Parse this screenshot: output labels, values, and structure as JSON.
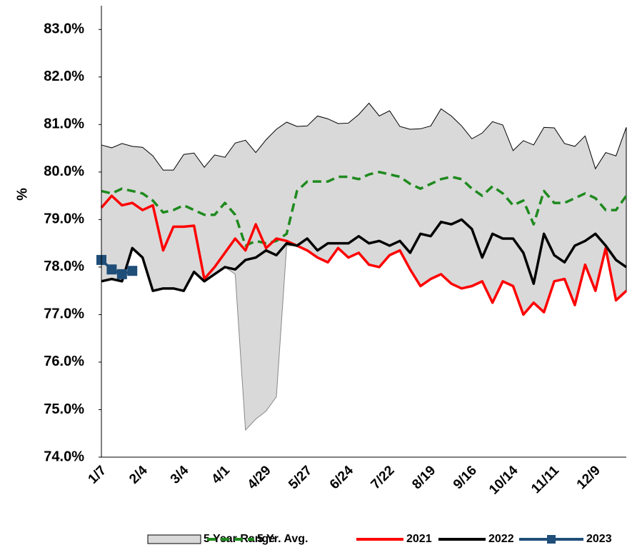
{
  "chart_data": {
    "type": "line",
    "y_label": "%",
    "categories": [
      "1/7",
      null,
      null,
      null,
      "2/4",
      null,
      null,
      null,
      "3/4",
      null,
      null,
      null,
      "4/1",
      null,
      null,
      null,
      "4/29",
      null,
      null,
      null,
      "5/27",
      null,
      null,
      null,
      "6/24",
      null,
      null,
      null,
      "7/22",
      null,
      null,
      null,
      "8/19",
      null,
      null,
      null,
      "9/16",
      null,
      null,
      null,
      "10/14",
      null,
      null,
      null,
      "11/11",
      null,
      null,
      null,
      "12/9",
      null,
      null,
      null
    ],
    "ylim": [
      74,
      83.5
    ],
    "yticks": [
      {
        "value": 74,
        "label": "74.0%"
      },
      {
        "value": 75,
        "label": "75.0%"
      },
      {
        "value": 76,
        "label": "76.0%"
      },
      {
        "value": 77,
        "label": "77.0%"
      },
      {
        "value": 78,
        "label": "78.0%"
      },
      {
        "value": 79,
        "label": "79.0%"
      },
      {
        "value": 80,
        "label": "80.0%"
      },
      {
        "value": 81,
        "label": "81.0%"
      },
      {
        "value": 82,
        "label": "82.0%"
      },
      {
        "value": 83,
        "label": "83.0%"
      }
    ],
    "grid": false,
    "series": [
      {
        "name": "5 Year Range",
        "color": "#d9d9d9",
        "kind": "range",
        "high": [
          80.57,
          80.51,
          80.6,
          80.54,
          80.52,
          80.34,
          80.04,
          80.04,
          80.37,
          80.4,
          80.1,
          80.36,
          80.31,
          80.61,
          80.67,
          80.41,
          80.68,
          80.9,
          81.05,
          80.96,
          80.97,
          81.18,
          81.12,
          81.02,
          81.03,
          81.21,
          81.45,
          81.18,
          81.29,
          80.96,
          80.9,
          80.91,
          80.97,
          81.33,
          81.18,
          80.97,
          80.7,
          80.82,
          81.06,
          80.99,
          80.45,
          80.66,
          80.57,
          80.94,
          80.93,
          80.6,
          80.54,
          80.76,
          80.07,
          80.41,
          80.34,
          80.94
        ],
        "low": [
          77.7,
          77.75,
          77.7,
          78.4,
          78.2,
          77.5,
          77.55,
          77.55,
          77.5,
          77.9,
          77.7,
          77.85,
          78.0,
          77.85,
          74.57,
          74.8,
          74.97,
          75.27,
          78.45,
          78.45,
          78.35,
          78.2,
          78.1,
          78.4,
          78.2,
          78.3,
          78.05,
          78.0,
          78.25,
          78.35,
          77.95,
          77.6,
          77.75,
          77.85,
          77.65,
          77.55,
          77.6,
          77.7,
          77.25,
          77.7,
          77.6,
          77.0,
          77.25,
          77.05,
          77.7,
          77.75,
          77.2,
          78.05,
          77.5,
          78.4,
          77.3,
          77.5
        ]
      },
      {
        "name": "5 Yr. Avg.",
        "color": "#1e8a1e",
        "dashed": true,
        "values": [
          79.6,
          79.55,
          79.65,
          79.6,
          79.55,
          79.4,
          79.15,
          79.2,
          79.3,
          79.2,
          79.1,
          79.1,
          79.35,
          79.1,
          78.45,
          78.55,
          78.5,
          78.55,
          78.7,
          79.6,
          79.8,
          79.8,
          79.8,
          79.9,
          79.9,
          79.85,
          79.95,
          80.0,
          79.95,
          79.9,
          79.75,
          79.65,
          79.75,
          79.85,
          79.9,
          79.85,
          79.65,
          79.5,
          79.7,
          79.55,
          79.3,
          79.4,
          78.9,
          79.6,
          79.35,
          79.35,
          79.45,
          79.55,
          79.45,
          79.2,
          79.2,
          79.5
        ]
      },
      {
        "name": "2021",
        "color": "#ff0000",
        "values": [
          79.25,
          79.5,
          79.3,
          79.35,
          79.2,
          79.3,
          78.35,
          78.85,
          78.85,
          78.87,
          77.75,
          78.0,
          78.3,
          78.6,
          78.35,
          78.9,
          78.4,
          78.6,
          78.55,
          78.45,
          78.35,
          78.2,
          78.1,
          78.4,
          78.2,
          78.3,
          78.05,
          78.0,
          78.25,
          78.35,
          77.95,
          77.6,
          77.75,
          77.85,
          77.65,
          77.55,
          77.6,
          77.7,
          77.25,
          77.7,
          77.6,
          77.0,
          77.25,
          77.05,
          77.7,
          77.75,
          77.2,
          78.05,
          77.5,
          78.4,
          77.3,
          77.5
        ]
      },
      {
        "name": "2022",
        "color": "#000000",
        "values": [
          77.7,
          77.75,
          77.7,
          78.4,
          78.2,
          77.5,
          77.55,
          77.55,
          77.5,
          77.9,
          77.7,
          77.85,
          78.0,
          77.95,
          78.15,
          78.2,
          78.35,
          78.25,
          78.5,
          78.45,
          78.6,
          78.35,
          78.5,
          78.5,
          78.5,
          78.65,
          78.5,
          78.55,
          78.45,
          78.55,
          78.3,
          78.7,
          78.65,
          78.95,
          78.9,
          79.0,
          78.8,
          78.2,
          78.7,
          78.6,
          78.6,
          78.3,
          77.65,
          78.7,
          78.25,
          78.1,
          78.45,
          78.55,
          78.7,
          78.45,
          78.15,
          78.0
        ]
      },
      {
        "name": "2023",
        "color": "#1f4e79",
        "marker": "square",
        "values": [
          78.15,
          77.95,
          77.85,
          77.92,
          null,
          null,
          null,
          null,
          null,
          null,
          null,
          null,
          null,
          null,
          null,
          null,
          null,
          null,
          null,
          null,
          null,
          null,
          null,
          null,
          null,
          null,
          null,
          null,
          null,
          null,
          null,
          null,
          null,
          null,
          null,
          null,
          null,
          null,
          null,
          null,
          null,
          null,
          null,
          null,
          null,
          null,
          null,
          null,
          null,
          null,
          null,
          null
        ]
      }
    ]
  }
}
